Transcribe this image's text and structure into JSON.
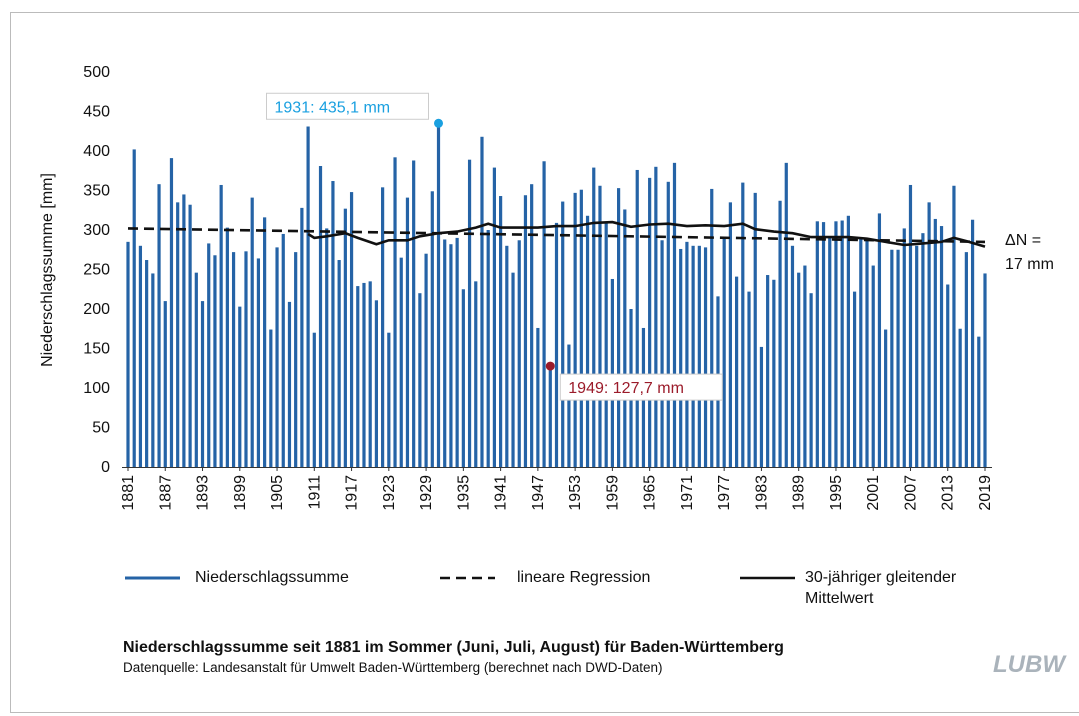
{
  "chart_data": {
    "type": "bar",
    "ylabel": "Niederschlagssumme [mm]",
    "title": "Niederschlagssumme seit 1881 im Sommer (Juni, Juli, August) für Baden-Württemberg",
    "source": "Datenquelle: Landesanstalt für Umwelt Baden-Württemberg (berechnet nach DWD-Daten)",
    "logo": "LUBW",
    "ylim": [
      0,
      500
    ],
    "yticks": [
      0,
      50,
      100,
      150,
      200,
      250,
      300,
      350,
      400,
      450,
      500
    ],
    "xlim": [
      1881,
      2019
    ],
    "xticks": [
      1881,
      1887,
      1893,
      1899,
      1905,
      1911,
      1917,
      1923,
      1929,
      1935,
      1941,
      1947,
      1953,
      1959,
      1965,
      1971,
      1977,
      1983,
      1989,
      1995,
      2001,
      2007,
      2013,
      2019
    ],
    "series": [
      {
        "name": "Niederschlagssumme",
        "color": "#2563a6",
        "x": [
          1881,
          1882,
          1883,
          1884,
          1885,
          1886,
          1887,
          1888,
          1889,
          1890,
          1891,
          1892,
          1893,
          1894,
          1895,
          1896,
          1897,
          1898,
          1899,
          1900,
          1901,
          1902,
          1903,
          1904,
          1905,
          1906,
          1907,
          1908,
          1909,
          1910,
          1911,
          1912,
          1913,
          1914,
          1915,
          1916,
          1917,
          1918,
          1919,
          1920,
          1921,
          1922,
          1923,
          1924,
          1925,
          1926,
          1927,
          1928,
          1929,
          1930,
          1931,
          1932,
          1933,
          1934,
          1935,
          1936,
          1937,
          1938,
          1939,
          1940,
          1941,
          1942,
          1943,
          1944,
          1945,
          1946,
          1947,
          1948,
          1949,
          1950,
          1951,
          1952,
          1953,
          1954,
          1955,
          1956,
          1957,
          1958,
          1959,
          1960,
          1961,
          1962,
          1963,
          1964,
          1965,
          1966,
          1967,
          1968,
          1969,
          1970,
          1971,
          1972,
          1973,
          1974,
          1975,
          1976,
          1977,
          1978,
          1979,
          1980,
          1981,
          1982,
          1983,
          1984,
          1985,
          1986,
          1987,
          1988,
          1989,
          1990,
          1991,
          1992,
          1993,
          1994,
          1995,
          1996,
          1997,
          1998,
          1999,
          2000,
          2001,
          2002,
          2003,
          2004,
          2005,
          2006,
          2007,
          2008,
          2009,
          2010,
          2011,
          2012,
          2013,
          2014,
          2015,
          2016,
          2017,
          2018,
          2019
        ],
        "values": [
          285,
          402,
          280,
          262,
          245,
          358,
          210,
          391,
          335,
          345,
          332,
          246,
          210,
          283,
          268,
          357,
          303,
          272,
          203,
          273,
          341,
          264,
          316,
          174,
          278,
          295,
          209,
          272,
          328,
          431,
          170,
          381,
          302,
          362,
          262,
          327,
          348,
          229,
          233,
          235,
          211,
          354,
          170,
          392,
          265,
          341,
          388,
          220,
          270,
          349,
          435.1,
          288,
          282,
          290,
          225,
          389,
          235,
          418,
          300,
          379,
          343,
          280,
          246,
          287,
          344,
          358,
          176,
          387,
          127.7,
          309,
          336,
          155,
          347,
          351,
          318,
          379,
          356,
          310,
          238,
          353,
          326,
          200,
          376,
          176,
          366,
          380,
          287,
          361,
          385,
          276,
          285,
          280,
          280,
          278,
          352,
          216,
          290,
          335,
          241,
          360,
          222,
          347,
          152,
          243,
          237,
          337,
          385,
          280,
          246,
          255,
          220,
          311,
          310,
          290,
          311,
          312,
          318,
          222,
          290,
          290,
          255,
          321,
          174,
          275,
          275,
          302,
          357,
          280,
          296,
          335,
          314,
          305,
          231,
          356,
          175,
          272,
          313,
          165,
          245
        ]
      },
      {
        "name": "lineare Regression",
        "color": "#111111",
        "dash": true,
        "x": [
          1881,
          2019
        ],
        "values": [
          302,
          285
        ]
      },
      {
        "name": "30-jähriger gleitender Mittelwert",
        "color": "#111111",
        "x": [
          1910,
          1911,
          1913,
          1916,
          1918,
          1921,
          1923,
          1926,
          1928,
          1931,
          1934,
          1937,
          1939,
          1941,
          1944,
          1947,
          1950,
          1953,
          1956,
          1959,
          1962,
          1965,
          1968,
          1971,
          1974,
          1977,
          1980,
          1982,
          1985,
          1988,
          1991,
          1994,
          1997,
          2000,
          2003,
          2006,
          2009,
          2012,
          2014,
          2016,
          2019
        ],
        "values": [
          295,
          290,
          292,
          296,
          290,
          282,
          287,
          287,
          292,
          296,
          298,
          303,
          308,
          303,
          303,
          303,
          305,
          305,
          309,
          310,
          304,
          307,
          308,
          305,
          306,
          305,
          308,
          301,
          298,
          296,
          291,
          291,
          291,
          289,
          285,
          281,
          283,
          285,
          290,
          286,
          279
        ]
      }
    ],
    "annotations": [
      {
        "text": "1931: 435,1 mm",
        "x": 1931,
        "value": 435.1,
        "color": "#1aa0e0"
      },
      {
        "text": "1949: 127,7 mm",
        "x": 1949,
        "value": 127.7,
        "color": "#9b1b2a"
      }
    ],
    "trend_label": [
      "ΔN =",
      "17 mm"
    ]
  }
}
